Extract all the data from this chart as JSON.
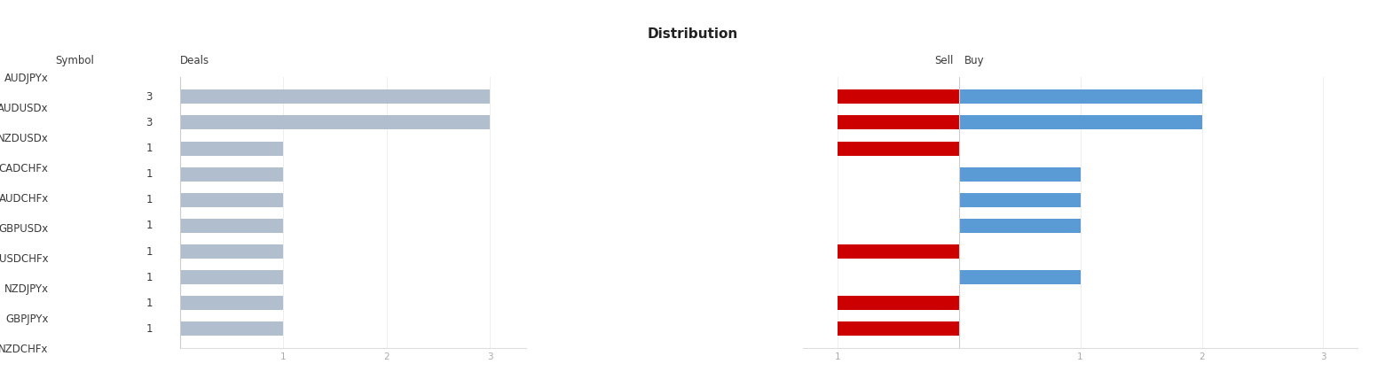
{
  "title": "Distribution",
  "symbols": [
    "AUDJPYx",
    "AUDUSDx",
    "NZDUSDx",
    "CADCHFx",
    "AUDCHFx",
    "GBPUSDx",
    "USDCHFx",
    "NZDJPYx",
    "GBPJPYx",
    "NZDCHFx"
  ],
  "deals": [
    3,
    3,
    1,
    1,
    1,
    1,
    1,
    1,
    1,
    1
  ],
  "sell": [
    1,
    1,
    1,
    0,
    0,
    0,
    1,
    0,
    1,
    1
  ],
  "buy": [
    2,
    2,
    0,
    1,
    1,
    1,
    0,
    1,
    0,
    0
  ],
  "bar_color_deals": "#b0bece",
  "bar_color_sell": "#cc0000",
  "bar_color_buy": "#5b9bd5",
  "background_color": "#ffffff",
  "title_fontsize": 11,
  "label_fontsize": 8.5,
  "tick_fontsize": 7.5,
  "deals_xlabel": "Deals",
  "sell_label": "Sell",
  "buy_label": "Buy",
  "symbol_label": "Symbol"
}
